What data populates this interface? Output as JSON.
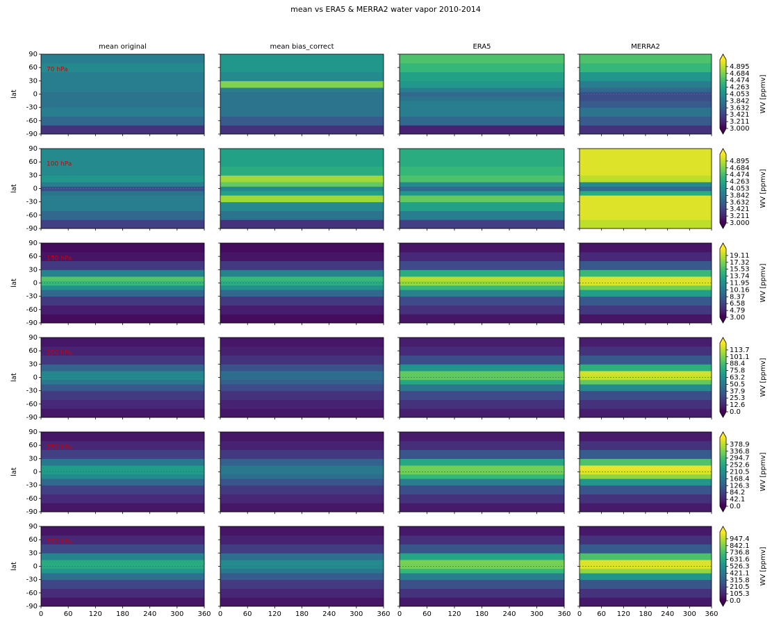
{
  "chart_data": {
    "type": "contour",
    "title": "mean vs ERA5 & MERRA2 water vapor 2010-2014",
    "column_titles": [
      "mean original",
      "mean bias_correct",
      "ERA5",
      "MERRA2"
    ],
    "ylabel": "lat",
    "colorbar_label": "WV [ppmv]",
    "xlim": [
      0,
      360
    ],
    "xticks": [
      0,
      60,
      120,
      180,
      240,
      300,
      360
    ],
    "ylim": [
      -90,
      90
    ],
    "yticks": [
      -90,
      -60,
      -30,
      0,
      30,
      60,
      90
    ],
    "lat": [
      -80,
      -60,
      -40,
      -20,
      -10,
      0,
      10,
      20,
      40,
      60,
      80
    ],
    "rows": [
      {
        "level": "70 hPa",
        "cbar_lim": [
          3.0,
          5.105
        ],
        "cbar_ticks": [
          {
            "value": 3.0,
            "label": "3.000"
          },
          3.211,
          3.421,
          3.632,
          3.842,
          4.053,
          4.263,
          4.474,
          4.684,
          4.895
        ],
        "panels": [
          {
            "values": [
              3.3,
              3.7,
              3.9,
              3.8,
              3.8,
              3.8,
              3.9,
              3.9,
              3.9,
              4.0,
              3.9
            ]
          },
          {
            "values": [
              3.3,
              3.6,
              3.8,
              3.8,
              3.8,
              3.8,
              3.9,
              4.7,
              4.0,
              4.1,
              4.1
            ]
          },
          {
            "values": [
              3.2,
              3.7,
              3.9,
              3.9,
              3.8,
              3.7,
              3.9,
              4.1,
              4.2,
              4.4,
              4.5
            ]
          },
          {
            "values": [
              3.3,
              3.6,
              3.8,
              3.6,
              3.5,
              3.5,
              3.7,
              3.9,
              4.1,
              4.4,
              4.5
            ]
          }
        ]
      },
      {
        "level": "100 hPa",
        "cbar_lim": [
          3.0,
          5.105
        ],
        "cbar_ticks": [
          {
            "value": 3.0,
            "label": "3.000"
          },
          3.211,
          3.421,
          3.632,
          3.842,
          4.053,
          4.263,
          4.474,
          4.684,
          4.895
        ],
        "panels": [
          {
            "values": [
              3.4,
              3.7,
              3.9,
              3.9,
              3.8,
              3.5,
              3.9,
              4.1,
              4.0,
              4.0,
              4.0
            ]
          },
          {
            "values": [
              3.3,
              3.8,
              4.0,
              4.8,
              4.2,
              4.0,
              4.6,
              4.8,
              4.3,
              4.2,
              4.2
            ]
          },
          {
            "values": [
              3.4,
              3.9,
              4.2,
              4.6,
              4.1,
              3.7,
              4.0,
              4.5,
              4.4,
              4.3,
              4.3
            ]
          },
          {
            "values": [
              4.9,
              5.0,
              5.0,
              5.0,
              4.3,
              3.7,
              4.0,
              4.9,
              5.0,
              5.0,
              5.0
            ]
          }
        ]
      },
      {
        "level": "150 hPa",
        "cbar_lim": [
          3.0,
          20.9
        ],
        "cbar_ticks": [
          {
            "value": 3.0,
            "label": "3.00"
          },
          4.79,
          6.58,
          8.37,
          10.16,
          11.95,
          13.74,
          15.53,
          17.32,
          19.11
        ],
        "panels": [
          {
            "values": [
              3.5,
              4.5,
              6,
              9,
              12,
              15,
              16,
              11,
              6,
              4,
              3.5
            ]
          },
          {
            "values": [
              3.5,
              4.5,
              6,
              9,
              12,
              14,
              15,
              11,
              6,
              4,
              3.5
            ]
          },
          {
            "values": [
              4,
              5.5,
              7,
              11,
              15,
              18,
              19,
              14,
              7,
              5,
              4
            ]
          },
          {
            "values": [
              4,
              6,
              8,
              13,
              17,
              20,
              20,
              15,
              8,
              5,
              4
            ]
          }
        ]
      },
      {
        "level": "200 hPa",
        "cbar_lim": [
          0,
          126.3
        ],
        "cbar_ticks": [
          {
            "value": 0,
            "label": "0.0"
          },
          12.6,
          25.3,
          37.9,
          50.5,
          63.2,
          75.8,
          88.4,
          101.1,
          113.7
        ],
        "panels": [
          {
            "values": [
              8,
              14,
              22,
              35,
              50,
              60,
              58,
              40,
              20,
              12,
              8
            ]
          },
          {
            "values": [
              8,
              12,
              18,
              28,
              38,
              45,
              45,
              32,
              18,
              11,
              8
            ]
          },
          {
            "values": [
              10,
              18,
              28,
              50,
              75,
              95,
              95,
              65,
              30,
              15,
              10
            ]
          },
          {
            "values": [
              10,
              18,
              30,
              60,
              95,
              115,
              118,
              80,
              35,
              18,
              10
            ]
          }
        ]
      },
      {
        "level": "250 hPa",
        "cbar_lim": [
          0,
          421
        ],
        "cbar_ticks": [
          {
            "value": 0,
            "label": "0.0"
          },
          42.1,
          84.2,
          126.3,
          168.4,
          210.5,
          252.6,
          294.7,
          336.8,
          378.9
        ],
        "panels": [
          {
            "values": [
              25,
              50,
              80,
              140,
              200,
              230,
              230,
              170,
              80,
              45,
              25
            ]
          },
          {
            "values": [
              25,
              45,
              70,
              110,
              150,
              170,
              170,
              130,
              70,
              40,
              25
            ]
          },
          {
            "values": [
              30,
              60,
              100,
              180,
              280,
              330,
              330,
              250,
              110,
              55,
              30
            ]
          },
          {
            "values": [
              30,
              60,
              110,
              220,
              350,
              400,
              410,
              300,
              120,
              60,
              30
            ]
          }
        ]
      },
      {
        "level": "300 hPa",
        "cbar_lim": [
          0,
          1052.6
        ],
        "cbar_ticks": [
          {
            "value": 0,
            "label": "0.0"
          },
          105.3,
          210.5,
          315.8,
          421.1,
          526.3,
          631.6,
          736.8,
          842.1,
          947.4
        ],
        "panels": [
          {
            "values": [
              60,
              130,
              220,
              380,
              550,
              640,
              640,
              480,
              230,
              120,
              60
            ]
          },
          {
            "values": [
              60,
              110,
              180,
              300,
              420,
              500,
              500,
              380,
              190,
              100,
              60
            ]
          },
          {
            "values": [
              70,
              150,
              260,
              450,
              700,
              830,
              830,
              620,
              280,
              140,
              70
            ]
          },
          {
            "values": [
              70,
              150,
              280,
              550,
              880,
              1000,
              1000,
              750,
              300,
              150,
              70
            ]
          }
        ]
      }
    ]
  }
}
